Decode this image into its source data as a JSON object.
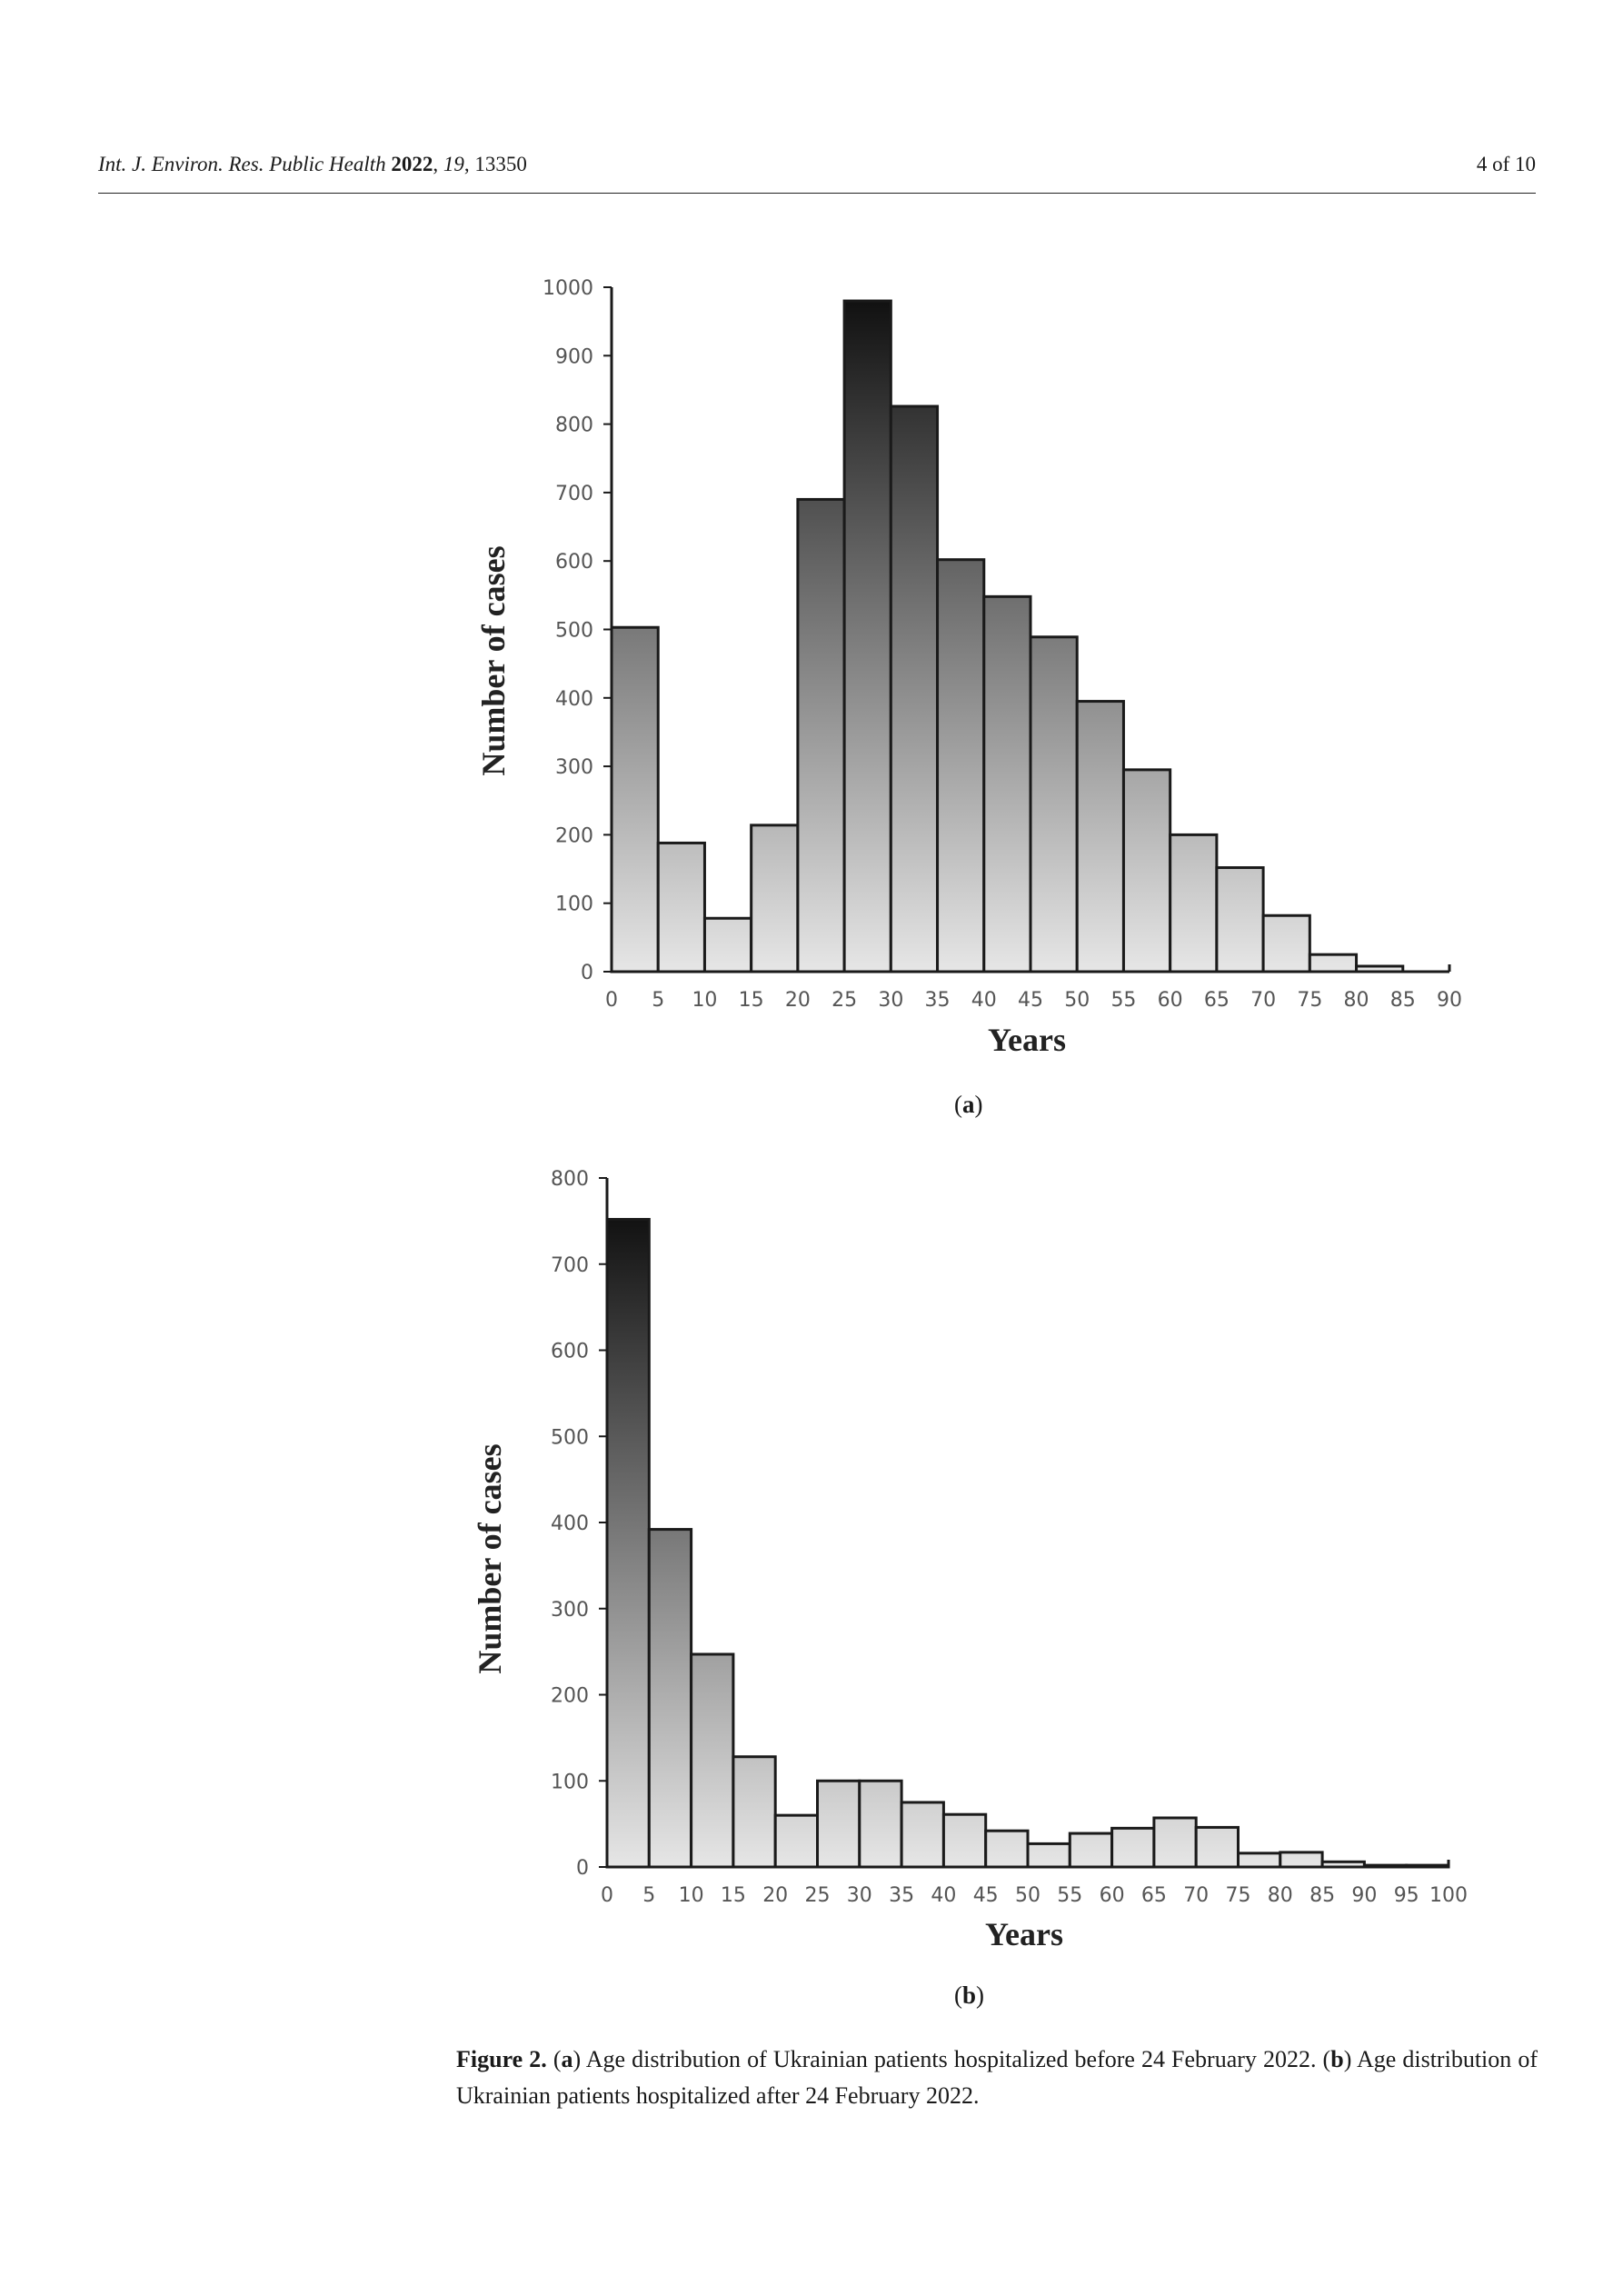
{
  "header": {
    "journal_italic": "Int. J. Environ. Res. Public Health",
    "year": "2022",
    "volume": "19",
    "article": ", 13350",
    "page": "4 of 10"
  },
  "chart_data": [
    {
      "type": "bar",
      "panel": "(a)",
      "xlabel": "Years",
      "ylabel": "Number of cases",
      "xlim": [
        0,
        90
      ],
      "ylim": [
        0,
        1000
      ],
      "x_ticks": [
        0,
        5,
        10,
        15,
        20,
        25,
        30,
        35,
        40,
        45,
        50,
        55,
        60,
        65,
        70,
        75,
        80,
        85,
        90
      ],
      "y_ticks": [
        0,
        100,
        200,
        300,
        400,
        500,
        600,
        700,
        800,
        900,
        1000
      ],
      "bin_width": 5,
      "bin_starts": [
        0,
        5,
        10,
        15,
        20,
        25,
        30,
        35,
        40,
        45,
        50,
        55,
        60,
        65,
        70,
        75,
        80,
        85
      ],
      "values": [
        503,
        188,
        78,
        214,
        690,
        980,
        826,
        602,
        548,
        489,
        395,
        295,
        200,
        152,
        82,
        25,
        8,
        0
      ],
      "gradient": {
        "top": "#111111",
        "bottom": "#e6e6e6"
      }
    },
    {
      "type": "bar",
      "panel": "(b)",
      "xlabel": "Years",
      "ylabel": "Number of cases",
      "xlim": [
        0,
        100
      ],
      "ylim": [
        0,
        800
      ],
      "x_ticks": [
        0,
        5,
        10,
        15,
        20,
        25,
        30,
        35,
        40,
        45,
        50,
        55,
        60,
        65,
        70,
        75,
        80,
        85,
        90,
        95,
        100
      ],
      "y_ticks": [
        0,
        100,
        200,
        300,
        400,
        500,
        600,
        700,
        800
      ],
      "bin_width": 5,
      "bin_starts": [
        0,
        5,
        10,
        15,
        20,
        25,
        30,
        35,
        40,
        45,
        50,
        55,
        60,
        65,
        70,
        75,
        80,
        85,
        90,
        95
      ],
      "values": [
        752,
        392,
        247,
        128,
        60,
        100,
        100,
        75,
        61,
        42,
        27,
        39,
        45,
        57,
        46,
        16,
        17,
        6,
        2,
        2
      ],
      "gradient": {
        "top": "#111111",
        "bottom": "#e6e6e6"
      }
    }
  ],
  "caption": {
    "figure_label": "Figure 2.",
    "a_open": " (",
    "a_letter": "a",
    "a_text": ") Age distribution of Ukrainian patients hospitalized before 24 February 2022. (",
    "b_letter": "b",
    "b_text": ") Age distribution of Ukrainian patients hospitalized after 24 February 2022."
  }
}
